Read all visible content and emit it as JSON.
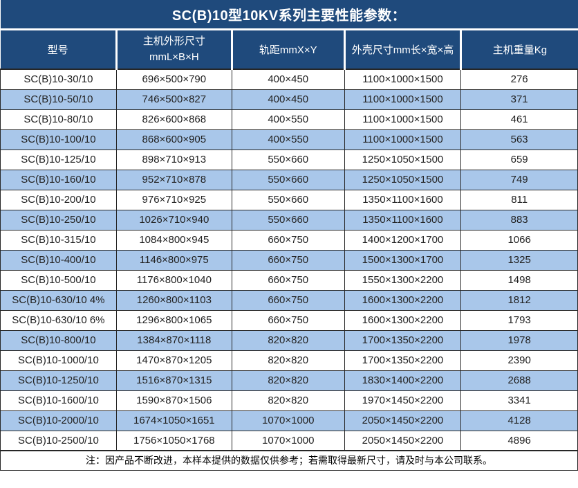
{
  "title": "SC(B)10型10KV系列主要性能参数：",
  "colors": {
    "header_bg": "#1f4a7c",
    "row_alt_bg": "#a9c7ea",
    "row_bg": "#ffffff",
    "border": "#262626",
    "header_text": "#ffffff",
    "cell_text": "#212121"
  },
  "table": {
    "columns": [
      {
        "label": "型号"
      },
      {
        "label_line1": "主机外形尺寸",
        "label_line2": "mmL×B×H"
      },
      {
        "label": "轨距mmX×Y"
      },
      {
        "label": "外壳尺寸mm长×宽×高"
      },
      {
        "label": "主机重量Kg"
      }
    ],
    "rows": [
      [
        "SC(B)10-30/10",
        "696×500×790",
        "400×450",
        "1100×1000×1500",
        "276"
      ],
      [
        "SC(B)10-50/10",
        "746×500×827",
        "400×450",
        "1100×1000×1500",
        "371"
      ],
      [
        "SC(B)10-80/10",
        "826×600×868",
        "400×550",
        "1100×1000×1500",
        "461"
      ],
      [
        "SC(B)10-100/10",
        "868×600×905",
        "400×550",
        "1100×1000×1500",
        "563"
      ],
      [
        "SC(B)10-125/10",
        "898×710×913",
        "550×660",
        "1250×1050×1500",
        "659"
      ],
      [
        "SC(B)10-160/10",
        "952×710×878",
        "550×660",
        "1250×1050×1500",
        "749"
      ],
      [
        "SC(B)10-200/10",
        "976×710×925",
        "550×660",
        "1350×1100×1600",
        "811"
      ],
      [
        "SC(B)10-250/10",
        "1026×710×940",
        "550×660",
        "1350×1100×1600",
        "883"
      ],
      [
        "SC(B)10-315/10",
        "1084×800×945",
        "660×750",
        "1400×1200×1700",
        "1066"
      ],
      [
        "SC(B)10-400/10",
        "1146×800×975",
        "660×750",
        "1500×1300×1700",
        "1325"
      ],
      [
        "SC(B)10-500/10",
        "1176×800×1040",
        "660×750",
        "1550×1300×2200",
        "1498"
      ],
      [
        "SC(B)10-630/10 4%",
        "1260×800×1103",
        "660×750",
        "1600×1300×2200",
        "1812"
      ],
      [
        "SC(B)10-630/10 6%",
        "1296×800×1065",
        "660×750",
        "1600×1300×2200",
        "1793"
      ],
      [
        "SC(B)10-800/10",
        "1384×870×1118",
        "820×820",
        "1700×1350×2200",
        "1978"
      ],
      [
        "SC(B)10-1000/10",
        "1470×870×1205",
        "820×820",
        "1700×1350×2200",
        "2390"
      ],
      [
        "SC(B)10-1250/10",
        "1516×870×1315",
        "820×820",
        "1830×1400×2200",
        "2688"
      ],
      [
        "SC(B)10-1600/10",
        "1590×870×1506",
        "820×820",
        "1970×1450×2200",
        "3341"
      ],
      [
        "SC(B)10-2000/10",
        "1674×1050×1651",
        "1070×1000",
        "2050×1450×2200",
        "4128"
      ],
      [
        "SC(B)10-2500/10",
        "1756×1050×1768",
        "1070×1000",
        "2050×1450×2200",
        "4896"
      ]
    ]
  },
  "footnote": "注：因产品不断改进，本样本提供的数据仅供参考；若需取得最新尺寸，请及时与本公司联系。"
}
